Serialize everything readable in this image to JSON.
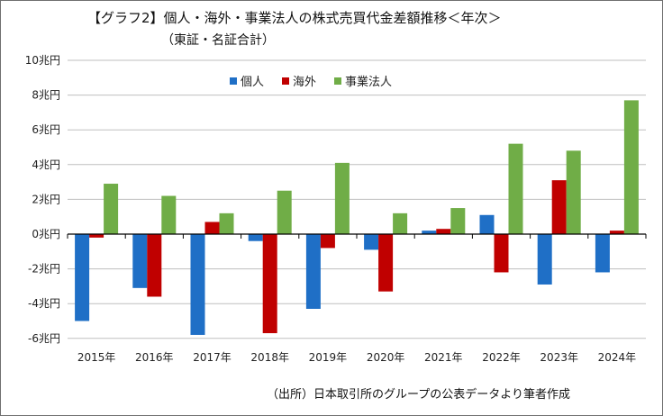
{
  "title": "【グラフ2】個人・海外・事業法人の株式売買代金差額推移＜年次＞",
  "subtitle": "（東証・名証合計）",
  "source": "（出所）日本取引所のグループの公表データより筆者作成",
  "chart_data": {
    "type": "bar",
    "categories": [
      "2015年",
      "2016年",
      "2017年",
      "2018年",
      "2019年",
      "2020年",
      "2021年",
      "2022年",
      "2023年",
      "2024年"
    ],
    "series": [
      {
        "name": "個人",
        "color": "#1f6fc6",
        "values": [
          -5.0,
          -3.1,
          -5.8,
          -0.4,
          -4.3,
          -0.9,
          0.2,
          1.1,
          -2.9,
          -2.2
        ]
      },
      {
        "name": "海外",
        "color": "#c00000",
        "values": [
          -0.2,
          -3.6,
          0.7,
          -5.7,
          -0.8,
          -3.3,
          0.3,
          -2.2,
          3.1,
          0.2
        ]
      },
      {
        "name": "事業法人",
        "color": "#70ad47",
        "values": [
          2.9,
          2.2,
          1.2,
          2.5,
          4.1,
          1.2,
          1.5,
          5.2,
          4.8,
          7.7
        ]
      }
    ],
    "yticks": [
      "10兆円",
      "8兆円",
      "6兆円",
      "4兆円",
      "2兆円",
      "0兆円",
      "-2兆円",
      "-4兆円",
      "-6兆円"
    ],
    "ylim": [
      -6,
      10
    ],
    "grid": true,
    "legend_position": "top-center"
  }
}
